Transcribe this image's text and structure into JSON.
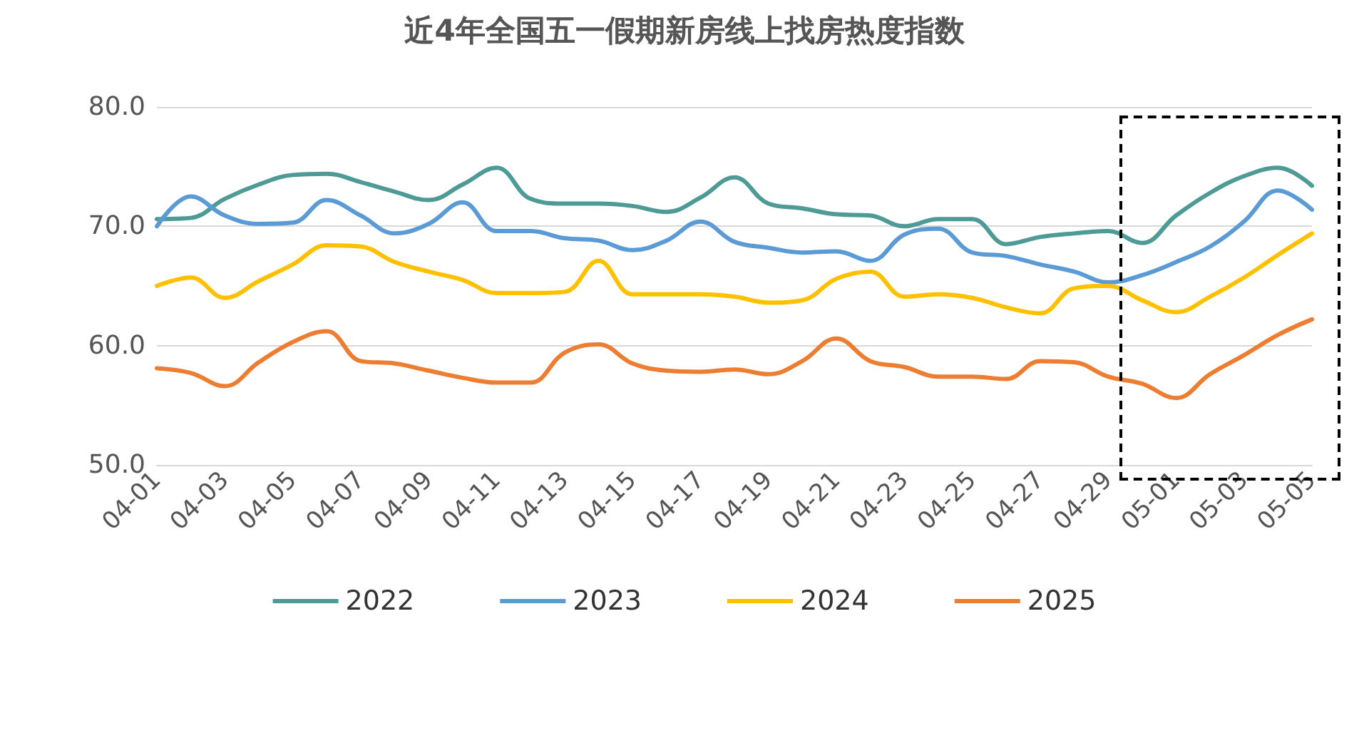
{
  "chart_data": {
    "type": "line",
    "title": "近4年全国五一假期新房线上找房热度指数",
    "categories": [
      "04-01",
      null,
      "04-03",
      null,
      "04-05",
      null,
      "04-07",
      null,
      "04-09",
      null,
      "04-11",
      null,
      "04-13",
      null,
      "04-15",
      null,
      "04-17",
      null,
      "04-19",
      null,
      "04-21",
      null,
      "04-23",
      null,
      "04-25",
      null,
      "04-27",
      null,
      "04-29",
      null,
      "05-01",
      null,
      "05-03",
      null,
      "05-05"
    ],
    "series": [
      {
        "name": "2022",
        "color": "#4e9a96",
        "values": [
          70.6,
          70.7,
          72.3,
          73.5,
          74.3,
          74.4,
          73.7,
          72.9,
          72.2,
          73.5,
          74.9,
          72.3,
          71.9,
          71.9,
          71.7,
          71.2,
          72.4,
          74.1,
          71.9,
          71.5,
          71.0,
          70.9,
          70.0,
          70.6,
          70.6,
          68.5,
          69.1,
          69.4,
          69.6,
          68.6,
          70.9,
          72.8,
          74.2,
          74.9,
          73.4
        ]
      },
      {
        "name": "2023",
        "color": "#5b9bd5",
        "values": [
          70.0,
          72.5,
          70.9,
          70.2,
          70.3,
          72.2,
          70.9,
          69.4,
          70.2,
          72.0,
          69.6,
          69.6,
          69.0,
          68.8,
          68.0,
          68.8,
          70.4,
          68.7,
          68.2,
          67.8,
          67.9,
          67.1,
          69.3,
          69.8,
          67.8,
          67.5,
          66.8,
          66.2,
          65.3,
          65.9,
          67.0,
          68.3,
          70.4,
          73.0,
          71.4
        ]
      },
      {
        "name": "2024",
        "color": "#ffc000",
        "values": [
          65.0,
          65.7,
          64.0,
          65.4,
          66.8,
          68.4,
          68.3,
          67.0,
          66.2,
          65.5,
          64.4,
          64.4,
          64.5,
          67.1,
          64.3,
          64.3,
          64.3,
          64.1,
          63.6,
          63.8,
          65.6,
          66.2,
          64.1,
          64.3,
          64.0,
          63.2,
          62.7,
          64.8,
          65.0,
          63.8,
          62.8,
          64.1,
          65.7,
          67.6,
          69.4
        ]
      },
      {
        "name": "2025",
        "color": "#ed7d31",
        "values": [
          58.1,
          57.7,
          56.6,
          58.6,
          60.3,
          61.2,
          58.7,
          58.5,
          57.9,
          57.3,
          56.9,
          56.9,
          59.4,
          60.1,
          58.5,
          57.9,
          57.8,
          58.0,
          57.6,
          58.7,
          60.6,
          58.7,
          58.2,
          57.4,
          57.4,
          57.2,
          58.7,
          58.6,
          57.4,
          56.8,
          55.6,
          57.6,
          59.2,
          60.9,
          62.2
        ]
      }
    ],
    "ylim": [
      50,
      80
    ],
    "yticks": [
      {
        "value": 50,
        "label": "50.0"
      },
      {
        "value": 60,
        "label": "60.0"
      },
      {
        "value": 70,
        "label": "70.0"
      },
      {
        "value": 80,
        "label": "80.0"
      }
    ],
    "grid": "y",
    "legend": "bottom",
    "marker": "none",
    "line_style": "solid"
  }
}
